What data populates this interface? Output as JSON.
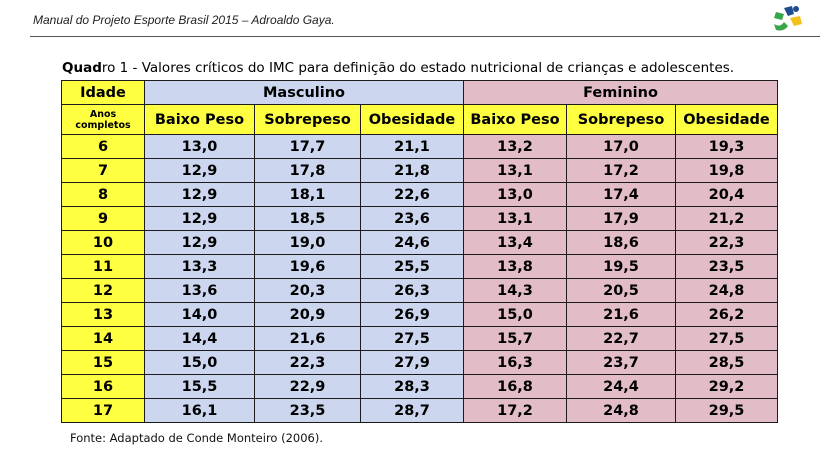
{
  "header": {
    "text": "Manual do Projeto Esporte Brasil 2015 – Adroaldo Gaya.",
    "logo_icon": "proesp-logo-icon",
    "logo_colors": [
      "#1f4d8f",
      "#3aa64a",
      "#f2c21b"
    ]
  },
  "caption": {
    "bold": "Quad",
    "rest": "ro 1 - Valores críticos do IMC para definição do estado nutricional de crianças e adolescentes."
  },
  "table": {
    "age_header": "Idade",
    "age_sub": "Anos completos",
    "groups": [
      "Masculino",
      "Feminino"
    ],
    "columns": [
      "Baixo Peso",
      "Sobrepeso",
      "Obesidade",
      "Baixo Peso",
      "Sobrepeso",
      "Obesidade"
    ],
    "rows": [
      [
        "6",
        "13,0",
        "17,7",
        "21,1",
        "13,2",
        "17,0",
        "19,3"
      ],
      [
        "7",
        "12,9",
        "17,8",
        "21,8",
        "13,1",
        "17,2",
        "19,8"
      ],
      [
        "8",
        "12,9",
        "18,1",
        "22,6",
        "13,0",
        "17,4",
        "20,4"
      ],
      [
        "9",
        "12,9",
        "18,5",
        "23,6",
        "13,1",
        "17,9",
        "21,2"
      ],
      [
        "10",
        "12,9",
        "19,0",
        "24,6",
        "13,4",
        "18,6",
        "22,3"
      ],
      [
        "11",
        "13,3",
        "19,6",
        "25,5",
        "13,8",
        "19,5",
        "23,5"
      ],
      [
        "12",
        "13,6",
        "20,3",
        "26,3",
        "14,3",
        "20,5",
        "24,8"
      ],
      [
        "13",
        "14,0",
        "20,9",
        "26,9",
        "15,0",
        "21,6",
        "26,2"
      ],
      [
        "14",
        "14,4",
        "21,6",
        "27,5",
        "15,7",
        "22,7",
        "27,5"
      ],
      [
        "15",
        "15,0",
        "22,3",
        "27,9",
        "16,3",
        "23,7",
        "28,5"
      ],
      [
        "16",
        "15,5",
        "22,9",
        "28,3",
        "16,8",
        "24,4",
        "29,2"
      ],
      [
        "17",
        "16,1",
        "23,5",
        "28,7",
        "17,2",
        "24,8",
        "29,5"
      ]
    ],
    "colors": {
      "age": "#ffff42",
      "male": "#ccd6ee",
      "female": "#e2bcc7",
      "border": "#1c1c1c"
    }
  },
  "source": "Fonte: Adaptado de Conde Monteiro (2006)."
}
